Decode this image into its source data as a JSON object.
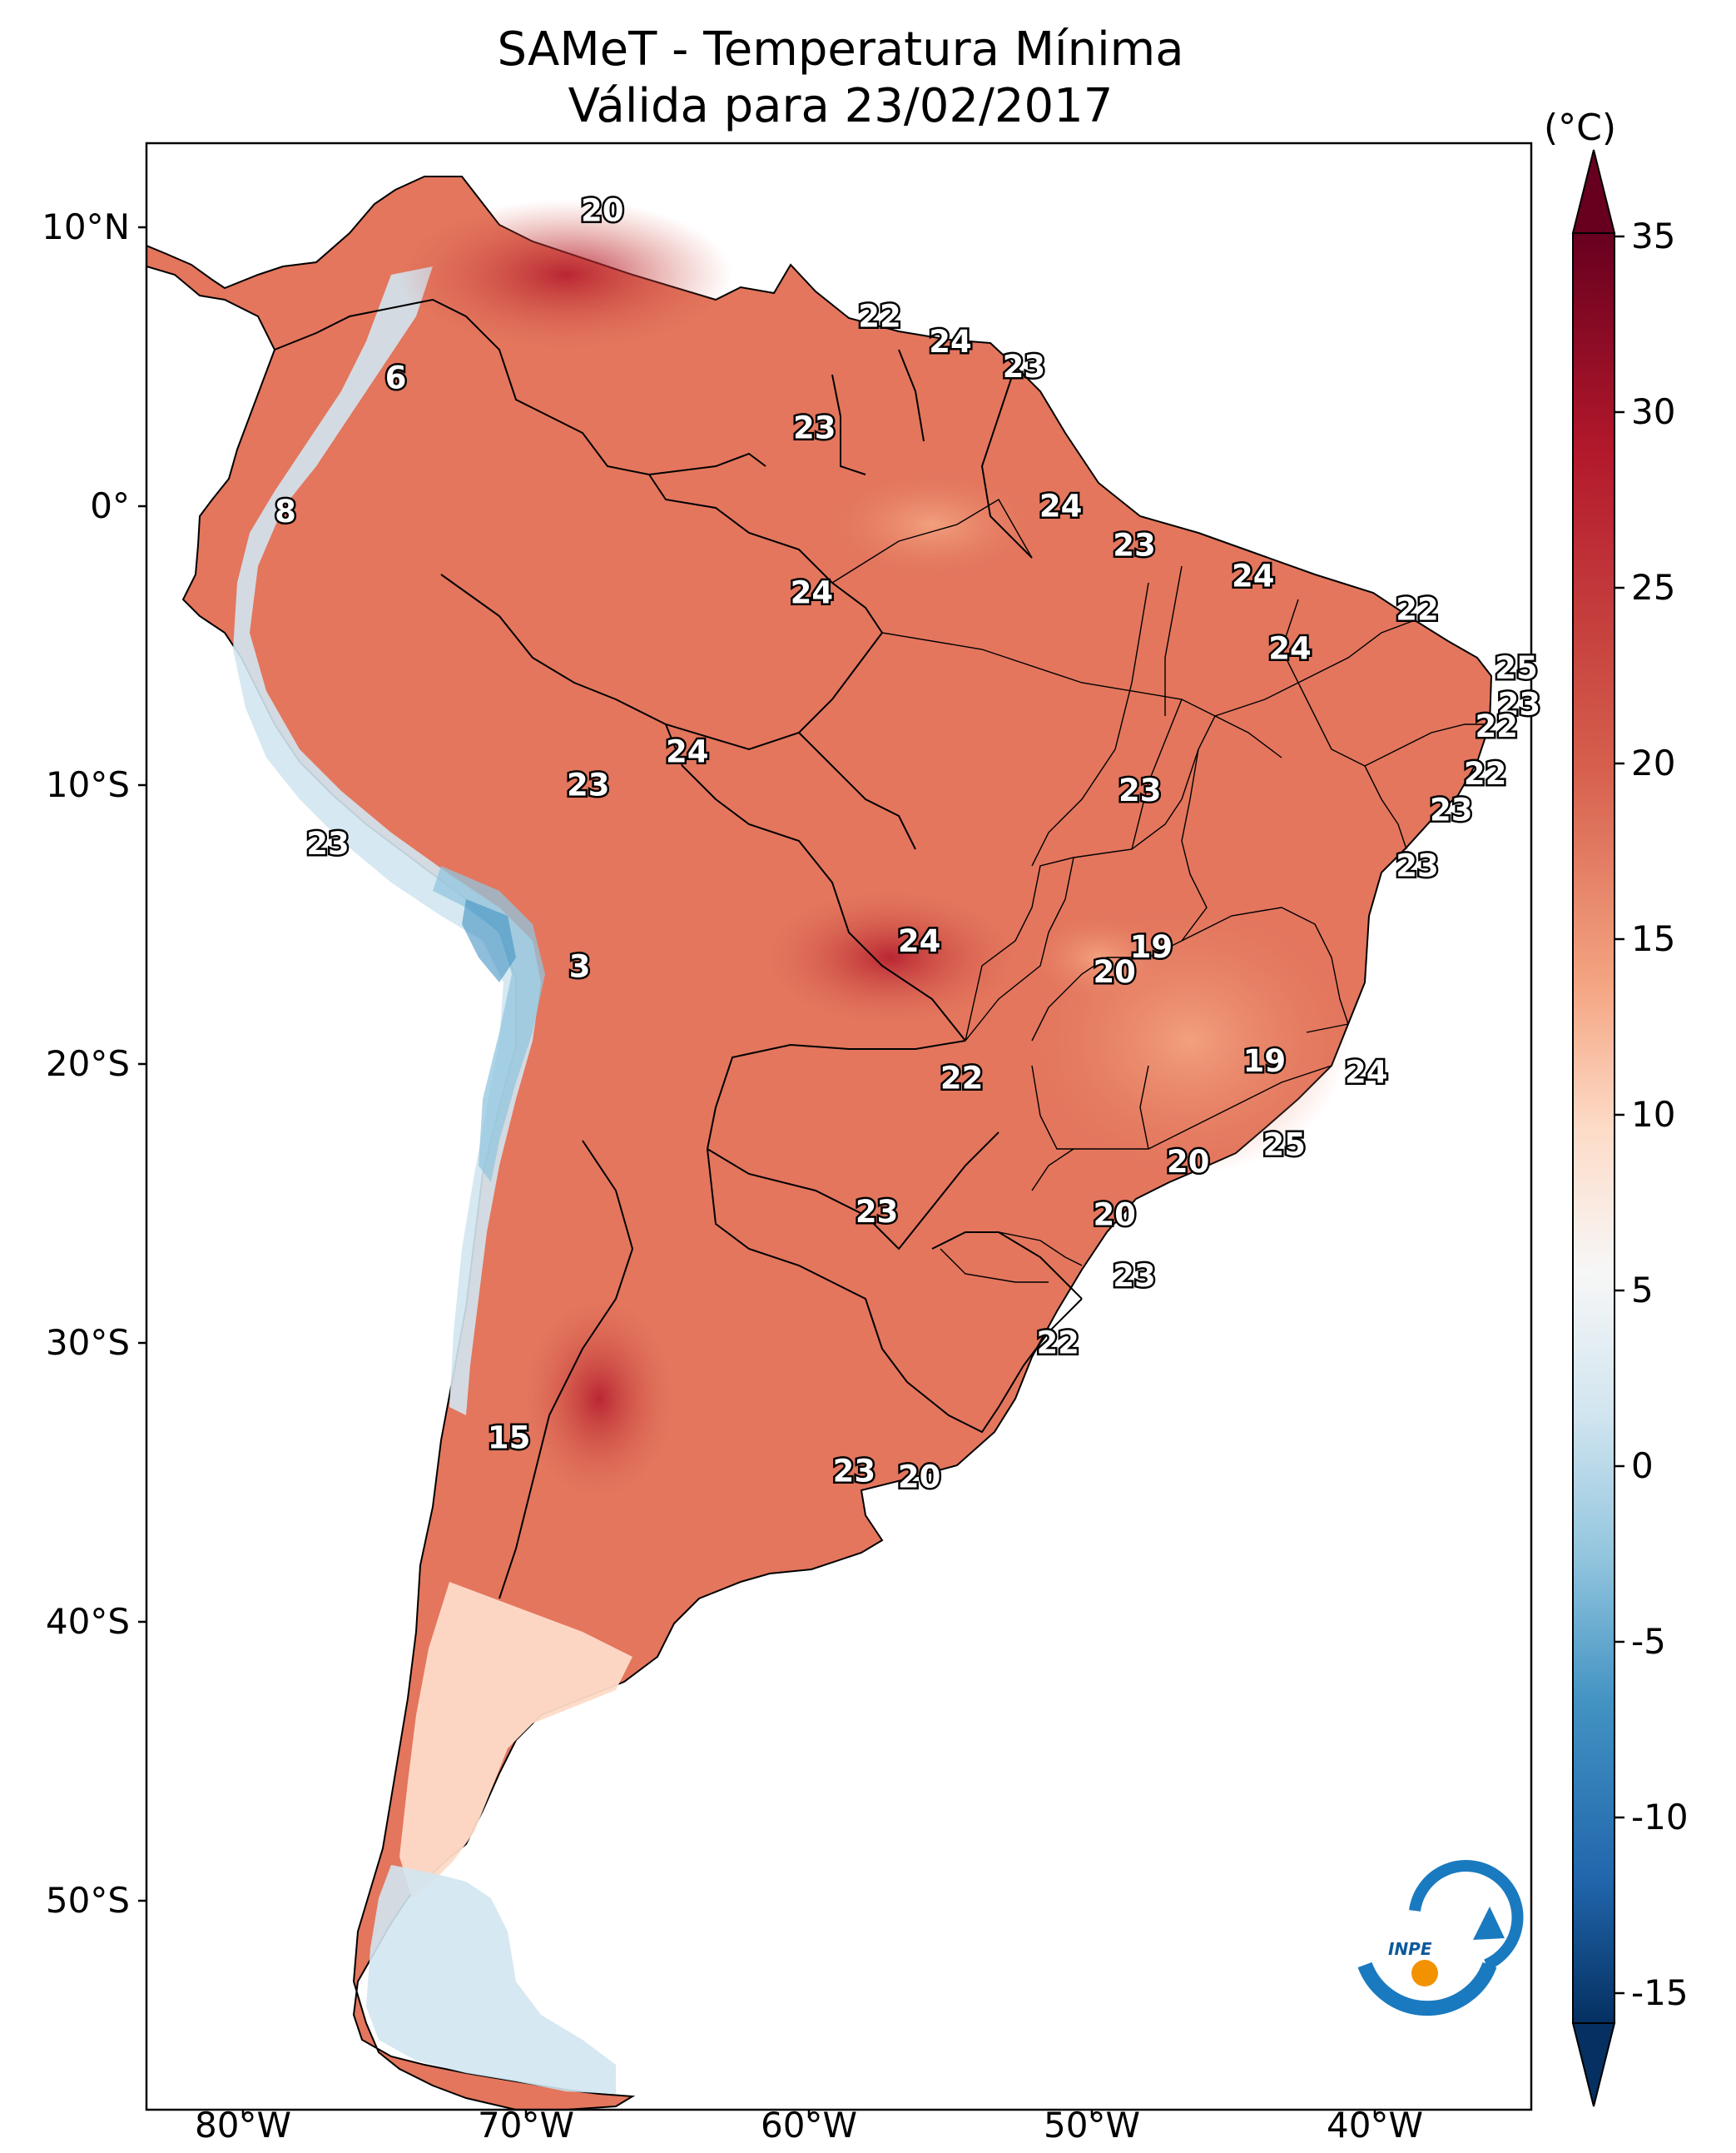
{
  "title_line1": "SAMeT - Temperatura Mínima",
  "title_line2": "Válida para 23/02/2017",
  "colorbar": {
    "unit": "(°C)",
    "range": [
      -15,
      35
    ],
    "ticks": [
      "35",
      "30",
      "25",
      "20",
      "15",
      "10",
      "5",
      "0",
      "-5",
      "-10",
      "-15"
    ],
    "extend": "both",
    "colormap": "RdBu_r",
    "colors": [
      "#67001f",
      "#b2182b",
      "#d6604d",
      "#f4a582",
      "#fddbc7",
      "#f7f7f7",
      "#d1e5f0",
      "#92c5de",
      "#4393c3",
      "#2166ac",
      "#053061"
    ]
  },
  "axes": {
    "lat_ticks": [
      "10°N",
      "0°",
      "10°S",
      "20°S",
      "30°S",
      "40°S",
      "50°S"
    ],
    "lon_ticks": [
      "80°W",
      "70°W",
      "60°W",
      "50°W",
      "40°W"
    ]
  },
  "stations": [
    {
      "t": "20",
      "lon": -67.3,
      "lat": 10.6
    },
    {
      "t": "22",
      "lon": -57.5,
      "lat": 6.8
    },
    {
      "t": "24",
      "lon": -55.0,
      "lat": 5.9
    },
    {
      "t": "23",
      "lon": -52.4,
      "lat": 5.0
    },
    {
      "t": "6",
      "lon": -74.6,
      "lat": 4.6
    },
    {
      "t": "23",
      "lon": -59.8,
      "lat": 2.8
    },
    {
      "t": "8",
      "lon": -78.5,
      "lat": -0.2
    },
    {
      "t": "24",
      "lon": -51.1,
      "lat": 0.0
    },
    {
      "t": "23",
      "lon": -48.5,
      "lat": -1.4
    },
    {
      "t": "24",
      "lon": -44.3,
      "lat": -2.5
    },
    {
      "t": "24",
      "lon": -59.9,
      "lat": -3.1
    },
    {
      "t": "22",
      "lon": -38.5,
      "lat": -3.7
    },
    {
      "t": "24",
      "lon": -43.0,
      "lat": -5.1
    },
    {
      "t": "25",
      "lon": -35.0,
      "lat": -5.8
    },
    {
      "t": "23",
      "lon": -34.9,
      "lat": -7.1
    },
    {
      "t": "22",
      "lon": -35.7,
      "lat": -7.9
    },
    {
      "t": "24",
      "lon": -64.3,
      "lat": -8.8
    },
    {
      "t": "23",
      "lon": -67.8,
      "lat": -10.0
    },
    {
      "t": "23",
      "lon": -48.3,
      "lat": -10.2
    },
    {
      "t": "22",
      "lon": -36.1,
      "lat": -9.6
    },
    {
      "t": "23",
      "lon": -37.3,
      "lat": -10.9
    },
    {
      "t": "23",
      "lon": -77.0,
      "lat": -12.1
    },
    {
      "t": "23",
      "lon": -38.5,
      "lat": -12.9
    },
    {
      "t": "24",
      "lon": -56.1,
      "lat": -15.6
    },
    {
      "t": "19",
      "lon": -47.9,
      "lat": -15.8
    },
    {
      "t": "20",
      "lon": -49.2,
      "lat": -16.7
    },
    {
      "t": "3",
      "lon": -68.1,
      "lat": -16.5
    },
    {
      "t": "19",
      "lon": -43.9,
      "lat": -19.9
    },
    {
      "t": "24",
      "lon": -40.3,
      "lat": -20.3
    },
    {
      "t": "22",
      "lon": -54.6,
      "lat": -20.5
    },
    {
      "t": "25",
      "lon": -43.2,
      "lat": -22.9
    },
    {
      "t": "20",
      "lon": -46.6,
      "lat": -23.5
    },
    {
      "t": "23",
      "lon": -57.6,
      "lat": -25.3
    },
    {
      "t": "20",
      "lon": -49.2,
      "lat": -25.4
    },
    {
      "t": "23",
      "lon": -48.5,
      "lat": -27.6
    },
    {
      "t": "22",
      "lon": -51.2,
      "lat": -30.0
    },
    {
      "t": "15",
      "lon": -70.6,
      "lat": -33.4
    },
    {
      "t": "23",
      "lon": -58.4,
      "lat": -34.6
    },
    {
      "t": "20",
      "lon": -56.1,
      "lat": -34.8
    }
  ]
}
